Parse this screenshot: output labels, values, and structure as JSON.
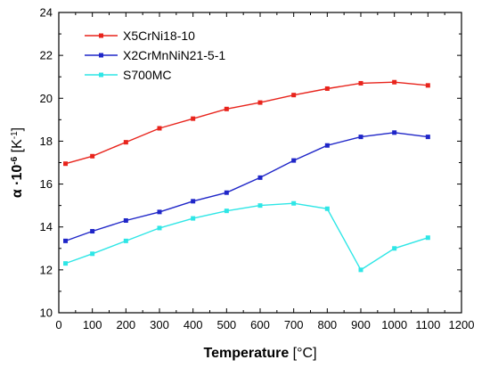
{
  "chart_data": {
    "type": "line",
    "xlabel_bold": "Temperature",
    "xlabel_unit": " [°C]",
    "ylabel_main": "α ·10",
    "ylabel_exp": "-6",
    "ylabel_unit_a": " [K",
    "ylabel_unit_exp": "-1",
    "ylabel_unit_b": "]",
    "xlim": [
      0,
      1200
    ],
    "ylim": [
      10,
      24
    ],
    "x_ticks": [
      0,
      100,
      200,
      300,
      400,
      500,
      600,
      700,
      800,
      900,
      1000,
      1100,
      1200
    ],
    "y_ticks": [
      10,
      12,
      14,
      16,
      18,
      20,
      22,
      24
    ],
    "legend_position": "top-left",
    "x": [
      20,
      100,
      200,
      300,
      400,
      500,
      600,
      700,
      800,
      900,
      1000,
      1100
    ],
    "series": [
      {
        "name": "X5CrNi18-10",
        "color": "#e8241c",
        "values": [
          16.95,
          17.3,
          17.95,
          18.6,
          19.05,
          19.5,
          19.8,
          20.15,
          20.45,
          20.7,
          20.75,
          20.6
        ]
      },
      {
        "name": "X2CrMnNiN21-5-1",
        "color": "#1f26c8",
        "values": [
          13.35,
          13.8,
          14.3,
          14.7,
          15.2,
          15.6,
          16.3,
          17.1,
          17.8,
          18.2,
          18.4,
          18.2
        ]
      },
      {
        "name": "S700MC",
        "color": "#2ee6e6",
        "values": [
          12.3,
          12.75,
          13.35,
          13.95,
          14.4,
          14.75,
          15.0,
          15.1,
          14.85,
          12.0,
          13.0,
          13.5
        ]
      }
    ]
  }
}
